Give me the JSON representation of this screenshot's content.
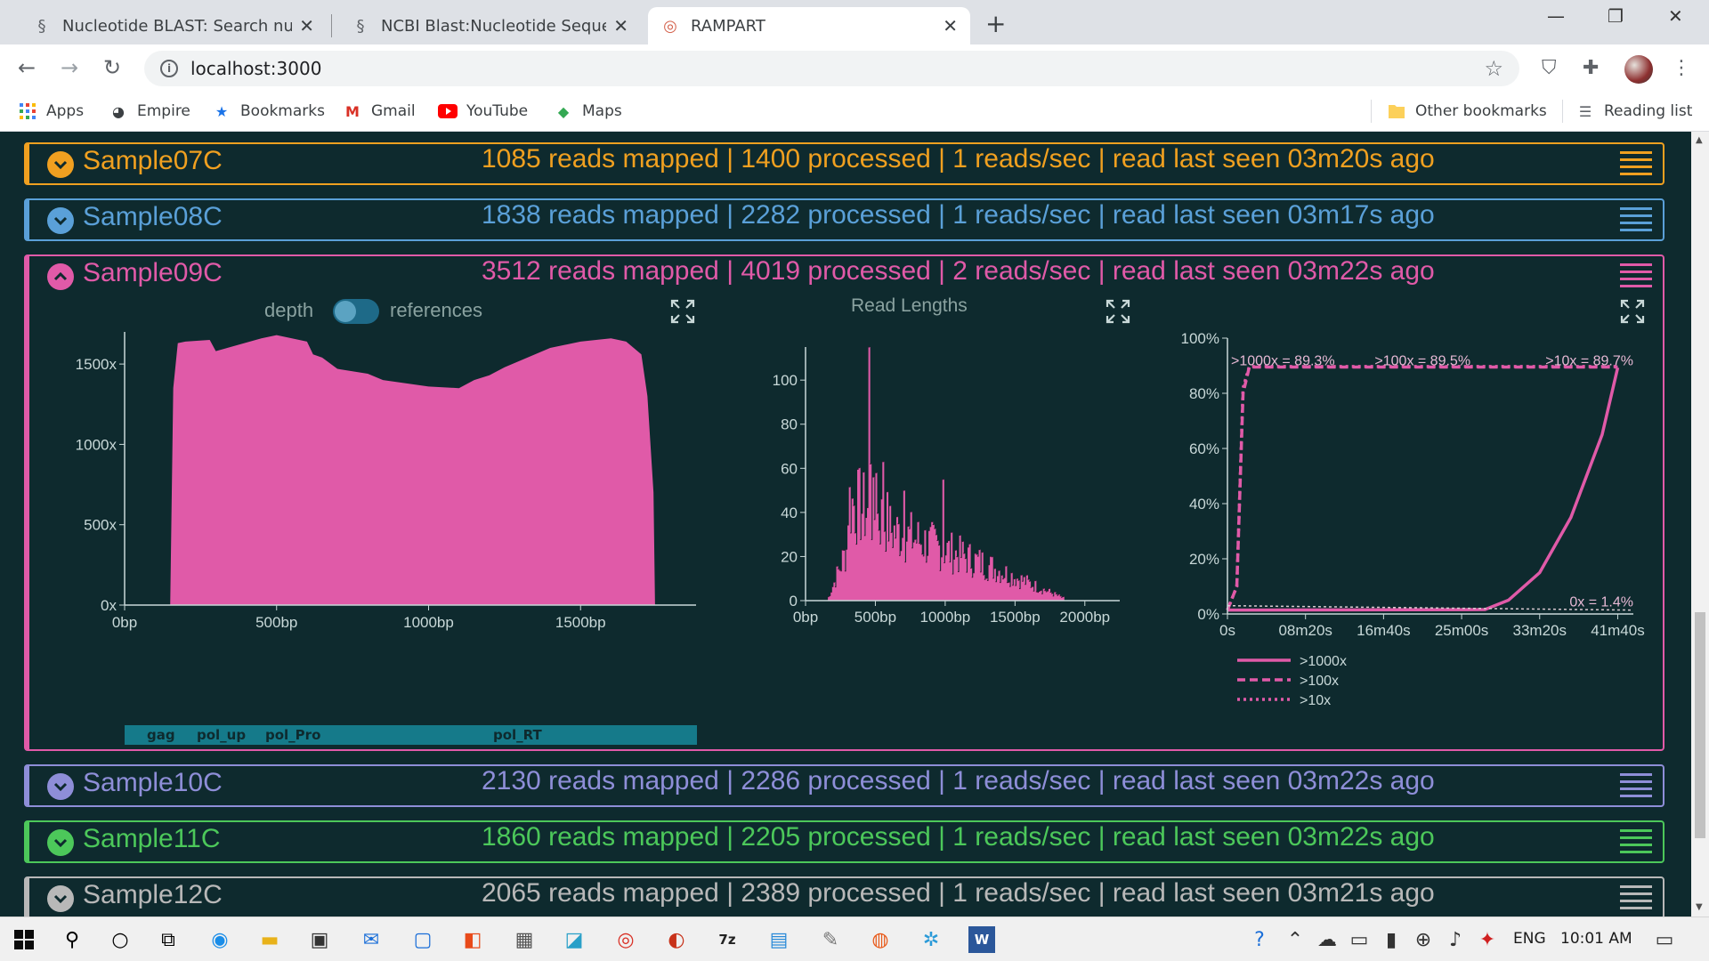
{
  "browser": {
    "tabs": [
      {
        "title": "Nucleotide BLAST: Search nucleo",
        "icon": "dna-icon"
      },
      {
        "title": "NCBI Blast:Nucleotide Sequence",
        "icon": "dna-icon"
      },
      {
        "title": "RAMPART",
        "icon": "rampart-icon"
      }
    ],
    "url": "localhost:3000",
    "bookmarks": [
      "Apps",
      "Empire",
      "Bookmarks",
      "Gmail",
      "YouTube",
      "Maps"
    ],
    "other_bookmarks": "Other bookmarks",
    "reading_list": "Reading list"
  },
  "samples": [
    {
      "name": "Sample07C",
      "stats": "1085 reads mapped | 1400 processed | 1 reads/sec | read last seen 03m20s ago",
      "color": "#f0a020",
      "expanded": false
    },
    {
      "name": "Sample08C",
      "stats": "1838 reads mapped | 2282 processed | 1 reads/sec | read last seen 03m17s ago",
      "color": "#5aa0d8",
      "expanded": false
    },
    {
      "name": "Sample09C",
      "stats": "3512 reads mapped | 4019 processed | 2 reads/sec | read last seen 03m22s ago",
      "color": "#e05aa8",
      "expanded": true
    },
    {
      "name": "Sample10C",
      "stats": "2130 reads mapped | 2286 processed | 1 reads/sec | read last seen 03m22s ago",
      "color": "#8e8ed8",
      "expanded": false
    },
    {
      "name": "Sample11C",
      "stats": "1860 reads mapped | 2205 processed | 1 reads/sec | read last seen 03m22s ago",
      "color": "#4cc85a",
      "expanded": false
    },
    {
      "name": "Sample12C",
      "stats": "2065 reads mapped | 2389 processed | 1 reads/sec | read last seen 03m21s ago",
      "color": "#b8b8b8",
      "expanded": false
    }
  ],
  "controls": {
    "depth_label": "depth",
    "references_label": "references"
  },
  "chart_data": [
    {
      "type": "area",
      "title": "",
      "x_ticks": [
        "0bp",
        "500bp",
        "1000bp",
        "1500bp"
      ],
      "y_ticks": [
        "0x",
        "500x",
        "1000x",
        "1500x"
      ],
      "xlim": [
        0,
        1880
      ],
      "ylim": [
        0,
        1700
      ],
      "x": [
        0,
        150,
        160,
        175,
        200,
        280,
        300,
        450,
        500,
        600,
        620,
        650,
        700,
        800,
        850,
        1000,
        1100,
        1150,
        1200,
        1250,
        1300,
        1400,
        1500,
        1600,
        1650,
        1700,
        1720,
        1740,
        1745,
        1880
      ],
      "y": [
        0,
        0,
        1350,
        1630,
        1640,
        1650,
        1580,
        1660,
        1680,
        1640,
        1560,
        1540,
        1470,
        1440,
        1400,
        1360,
        1350,
        1400,
        1430,
        1480,
        1520,
        1600,
        1640,
        1660,
        1640,
        1560,
        1300,
        700,
        0,
        0
      ],
      "references": [
        "gag",
        "pol_up",
        "pol_Pro",
        "pol_RT"
      ]
    },
    {
      "type": "bar",
      "title": "Read Lengths",
      "x_ticks": [
        "0bp",
        "500bp",
        "1000bp",
        "1500bp",
        "2000bp"
      ],
      "y_ticks": [
        "0",
        "20",
        "40",
        "60",
        "80",
        "100"
      ],
      "xlim": [
        0,
        2250
      ],
      "ylim": [
        0,
        115
      ]
    },
    {
      "type": "line",
      "x_ticks": [
        "0s",
        "08m20s",
        "16m40s",
        "25m00s",
        "33m20s",
        "41m40s"
      ],
      "y_ticks": [
        "0%",
        "20%",
        "40%",
        "60%",
        "80%",
        "100%"
      ],
      "xlim": [
        0,
        2600
      ],
      "ylim": [
        0,
        100
      ],
      "series": [
        {
          "name": ">1000x",
          "style": "solid",
          "x": [
            0,
            1650,
            1800,
            2000,
            2200,
            2400,
            2500
          ],
          "y": [
            1.4,
            1.6,
            5,
            15,
            35,
            65,
            89.3
          ]
        },
        {
          "name": ">100x",
          "style": "dashed",
          "x": [
            0,
            60,
            100,
            140,
            2500
          ],
          "y": [
            1.4,
            10,
            80,
            89.5,
            89.5
          ]
        },
        {
          "name": ">10x",
          "style": "dotted",
          "x": [
            0,
            60,
            100,
            140,
            2500
          ],
          "y": [
            1.4,
            10,
            82,
            89.7,
            89.7
          ]
        }
      ],
      "annotations": [
        ">1000x = 89.3%",
        ">100x = 89.5%",
        ">10x = 89.7%",
        "0x = 1.4%"
      ]
    }
  ],
  "taskbar": {
    "lang": "ENG",
    "time": "10:01 AM"
  }
}
